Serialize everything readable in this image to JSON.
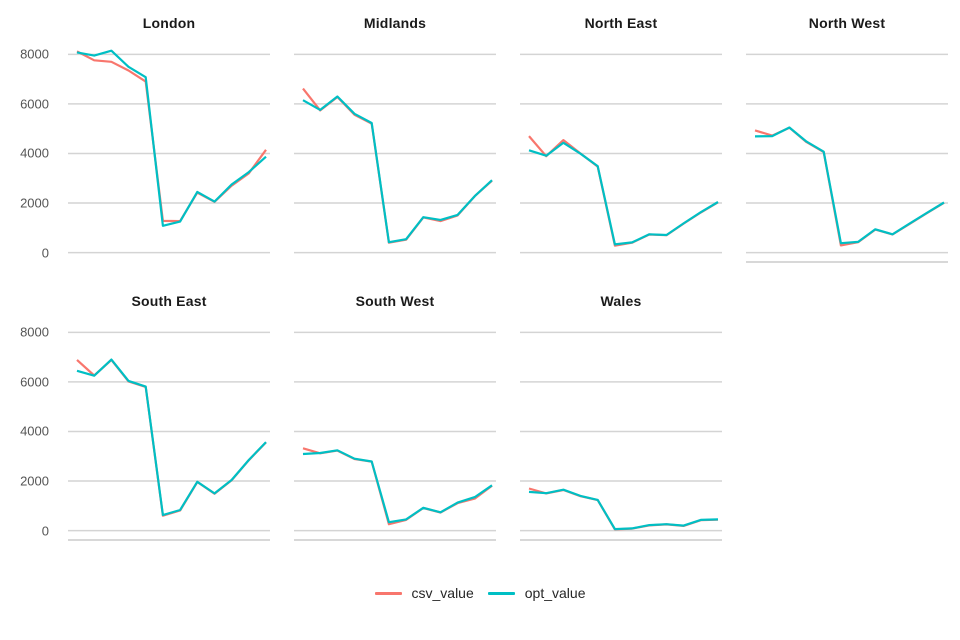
{
  "chart_data": {
    "type": "line",
    "title": "",
    "x_count": 12,
    "x_axis_labels_visible": false,
    "yticks": [
      0,
      2000,
      4000,
      6000,
      8000
    ],
    "ytick_labels": [
      "0",
      "2000",
      "4000",
      "6000",
      "8000"
    ],
    "ylim": [
      -420,
      8580
    ],
    "grid": "horizontal-only",
    "gridline_color": "#d4d4d4",
    "axis_line_color": "#cccccc",
    "tick_label_color": "#555555",
    "facet_title_color": "#1a1a1a",
    "background_color": "#ffffff",
    "columns": 4,
    "facets": [
      {
        "name": "London",
        "series": {
          "csv_value": [
            8120,
            7760,
            7700,
            7350,
            6900,
            1280,
            1270,
            2420,
            2050,
            2700,
            3200,
            4150
          ],
          "opt_value": [
            8080,
            7950,
            8150,
            7500,
            7080,
            1080,
            1250,
            2450,
            2060,
            2750,
            3250,
            3870
          ]
        }
      },
      {
        "name": "Midlands",
        "series": {
          "csv_value": [
            6620,
            5740,
            6280,
            5560,
            5200,
            400,
            520,
            1420,
            1270,
            1500,
            2280,
            2900
          ],
          "opt_value": [
            6150,
            5760,
            6300,
            5600,
            5230,
            420,
            540,
            1430,
            1320,
            1520,
            2280,
            2920
          ]
        }
      },
      {
        "name": "North East",
        "series": {
          "csv_value": [
            4700,
            3890,
            4540,
            4000,
            3470,
            280,
            400,
            730,
            700,
            1170,
            1620,
            2030
          ],
          "opt_value": [
            4130,
            3910,
            4430,
            3990,
            3490,
            330,
            410,
            740,
            710,
            1180,
            1630,
            2040
          ]
        }
      },
      {
        "name": "North West",
        "series": {
          "csv_value": [
            4930,
            4720,
            5040,
            4460,
            4060,
            290,
            420,
            930,
            730,
            1160,
            1590,
            2010
          ],
          "opt_value": [
            4690,
            4700,
            5050,
            4480,
            4070,
            380,
            430,
            940,
            740,
            1170,
            1600,
            2020
          ]
        }
      },
      {
        "name": "South East",
        "series": {
          "csv_value": [
            6890,
            6260,
            6890,
            6020,
            5800,
            600,
            810,
            1960,
            1490,
            2030,
            2840,
            3560
          ],
          "opt_value": [
            6450,
            6250,
            6900,
            6040,
            5810,
            630,
            830,
            1970,
            1500,
            2040,
            2850,
            3570
          ]
        }
      },
      {
        "name": "South West",
        "series": {
          "csv_value": [
            3320,
            3120,
            3230,
            2890,
            2780,
            260,
            430,
            910,
            730,
            1110,
            1290,
            1810
          ],
          "opt_value": [
            3090,
            3130,
            3240,
            2900,
            2790,
            340,
            450,
            920,
            740,
            1130,
            1350,
            1830
          ]
        }
      },
      {
        "name": "Wales",
        "series": {
          "csv_value": [
            1700,
            1500,
            1640,
            1390,
            1230,
            50,
            80,
            210,
            250,
            190,
            420,
            440
          ],
          "opt_value": [
            1560,
            1510,
            1650,
            1400,
            1240,
            60,
            90,
            220,
            260,
            200,
            430,
            450
          ]
        }
      }
    ],
    "series_order": [
      "csv_value",
      "opt_value"
    ],
    "series_colors": {
      "csv_value": "#F8766D",
      "opt_value": "#00BFC4"
    },
    "legend_position": "bottom-center",
    "legend": [
      {
        "label": "csv_value",
        "color": "#F8766D"
      },
      {
        "label": "opt_value",
        "color": "#00BFC4"
      }
    ]
  }
}
